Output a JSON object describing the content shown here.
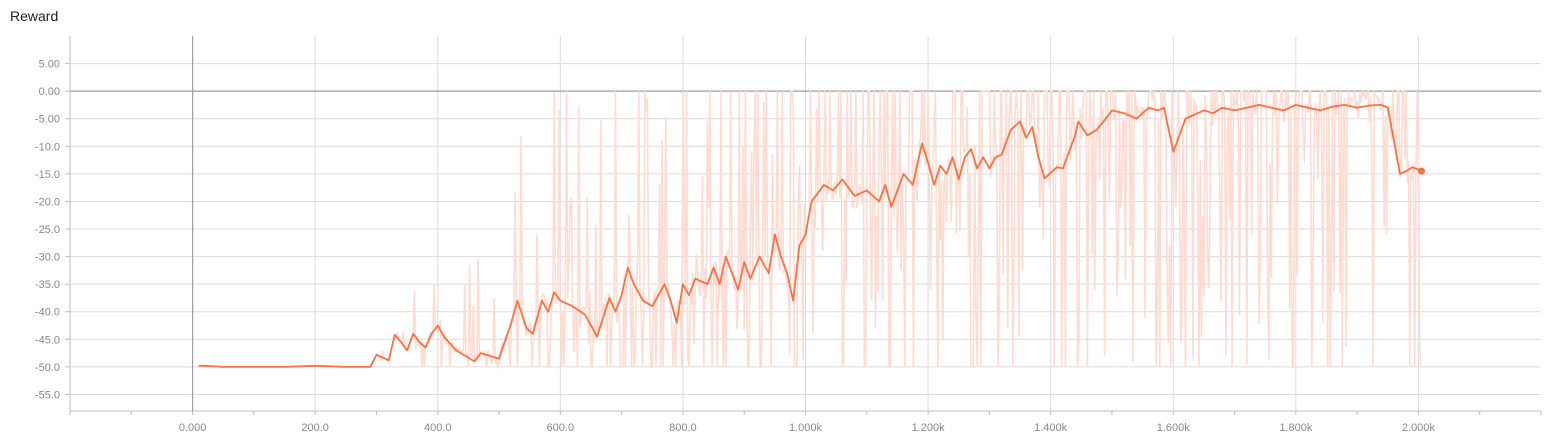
{
  "chart_data": {
    "type": "line",
    "title": "Reward",
    "xlabel": "",
    "ylabel": "",
    "xlim": [
      -200,
      2200
    ],
    "ylim": [
      -58,
      10
    ],
    "grid": true,
    "x_ticks": [
      0,
      200,
      400,
      600,
      800,
      1000,
      1200,
      1400,
      1600,
      1800,
      2000
    ],
    "x_tick_labels": [
      "0.000",
      "200.0",
      "400.0",
      "600.0",
      "800.0",
      "1.000k",
      "1.200k",
      "1.400k",
      "1.600k",
      "1.800k",
      "2.000k"
    ],
    "y_ticks": [
      5,
      0,
      -5,
      -10,
      -15,
      -20,
      -25,
      -30,
      -35,
      -40,
      -45,
      -50,
      -55
    ],
    "y_tick_labels": [
      "5.00",
      "0.00",
      "-5.00",
      "-10.0",
      "-15.0",
      "-20.0",
      "-25.0",
      "-30.0",
      "-35.0",
      "-40.0",
      "-45.0",
      "-50.0",
      "-55.0"
    ],
    "colors": {
      "smoothed": "#ff7043",
      "raw": "#ffdcd2",
      "zero_axis": "#9e9e9e",
      "grid": "#dcdcdc"
    },
    "series": [
      {
        "x": [
          10,
          20,
          50,
          100,
          150,
          200,
          250,
          290,
          300,
          320,
          330,
          340,
          350,
          360,
          370,
          380,
          390,
          400,
          410,
          430,
          460,
          470,
          500,
          520,
          530,
          545,
          555,
          570,
          580,
          590,
          600,
          620,
          640,
          660,
          680,
          690,
          700,
          710,
          720,
          735,
          750,
          770,
          780,
          790,
          800,
          810,
          820,
          840,
          850,
          860,
          870,
          880,
          890,
          900,
          910,
          925,
          940,
          950,
          960,
          970,
          980,
          990,
          1000,
          1010,
          1030,
          1045,
          1060,
          1080,
          1100,
          1120,
          1130,
          1140,
          1160,
          1175,
          1190,
          1200,
          1210,
          1220,
          1230,
          1240,
          1250,
          1260,
          1270,
          1280,
          1290,
          1300,
          1310,
          1320,
          1335,
          1350,
          1360,
          1370,
          1380,
          1390,
          1410,
          1420,
          1440,
          1445,
          1460,
          1475,
          1490,
          1500,
          1520,
          1540,
          1560,
          1575,
          1585,
          1600,
          1610,
          1620,
          1630,
          1650,
          1665,
          1680,
          1700,
          1720,
          1740,
          1760,
          1780,
          1800,
          1820,
          1840,
          1860,
          1880,
          1900,
          1920,
          1940,
          1950,
          1960,
          1970,
          1980,
          1990,
          2000,
          2005
        ],
        "y": [
          -49.8,
          -49.8,
          -50,
          -50,
          -50,
          -49.8,
          -50,
          -50,
          -47.8,
          -48.8,
          -44.2,
          -45.5,
          -47,
          -44,
          -45.5,
          -46.5,
          -44,
          -42.5,
          -44.5,
          -47,
          -49,
          -47.5,
          -48.5,
          -42,
          -38,
          -43,
          -44,
          -38,
          -40,
          -36.5,
          -38,
          -39,
          -40.5,
          -44.5,
          -37.5,
          -40,
          -37,
          -32,
          -35,
          -38,
          -39,
          -35,
          -38,
          -42,
          -35,
          -37,
          -34,
          -35,
          -32,
          -35,
          -30,
          -33,
          -36,
          -31,
          -34,
          -30,
          -33,
          -26,
          -30,
          -33,
          -38,
          -28,
          -26,
          -20,
          -17,
          -18,
          -16,
          -19,
          -18,
          -20,
          -17,
          -21,
          -15,
          -17,
          -9.5,
          -13,
          -17,
          -13.5,
          -15,
          -12,
          -16,
          -12,
          -10.5,
          -14,
          -12,
          -14,
          -12,
          -11.5,
          -7,
          -5.5,
          -8.5,
          -6.5,
          -12,
          -15.8,
          -13.8,
          -14,
          -8,
          -5.5,
          -8,
          -7,
          -5,
          -3.5,
          -4,
          -5,
          -3,
          -3.5,
          -3,
          -11,
          -8,
          -5,
          -4.5,
          -3.5,
          -4,
          -3,
          -3.5,
          -3,
          -2.5,
          -3,
          -3.5,
          -2.5,
          -3,
          -3.5,
          -2.8,
          -2.5,
          -3,
          -2.6,
          -2.5,
          -3,
          -9,
          -15,
          -14.5,
          -13.8,
          -14.2,
          -14.5
        ]
      }
    ]
  }
}
